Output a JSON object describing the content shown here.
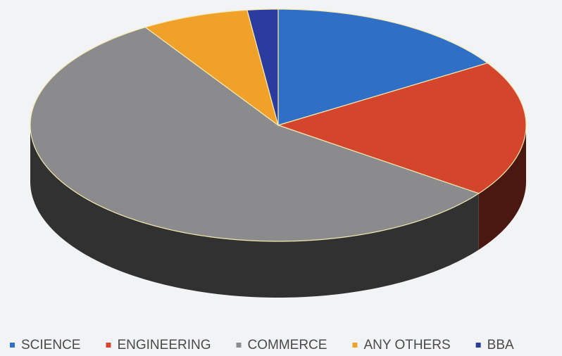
{
  "chart_data": {
    "type": "pie",
    "categories": [
      "SCIENCE",
      "ENGINEERING",
      "COMMERCE",
      "ANY OTHERS",
      "BBA"
    ],
    "values": [
      16,
      19,
      56,
      7,
      2
    ],
    "colors": [
      "#2f6fc6",
      "#d4452e",
      "#8b8b8d",
      "#f0a12a",
      "#2c3b9e"
    ]
  }
}
